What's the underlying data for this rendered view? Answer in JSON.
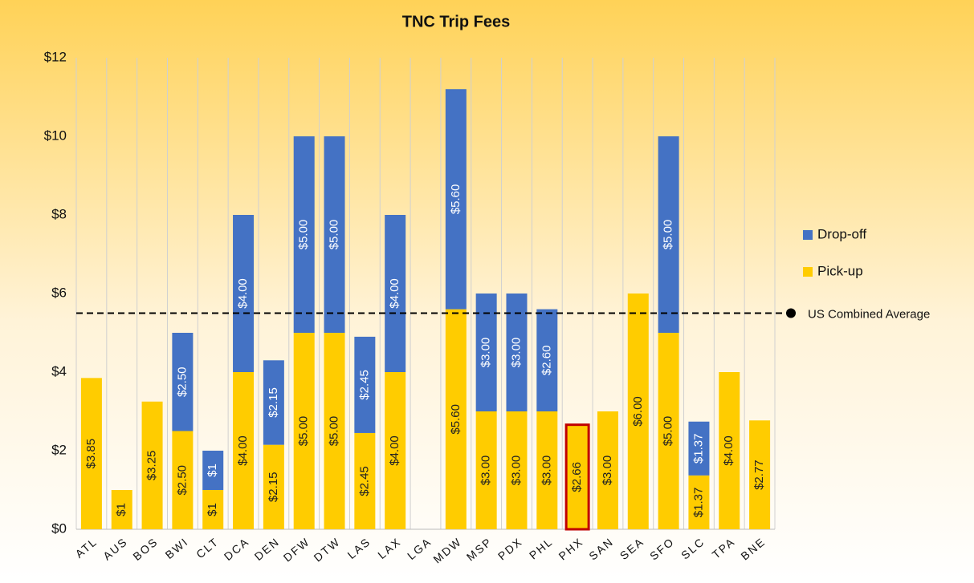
{
  "chart_data": {
    "type": "stacked_bar",
    "title": "TNC Trip Fees",
    "categories": [
      "ATL",
      "AUS",
      "BOS",
      "BWI",
      "CLT",
      "DCA",
      "DEN",
      "DFW",
      "DTW",
      "LAS",
      "LAX",
      "LGA",
      "MDW",
      "MSP",
      "PDX",
      "PHL",
      "PHX",
      "SAN",
      "SEA",
      "SFO",
      "SLC",
      "TPA",
      "BNE"
    ],
    "series": [
      {
        "name": "Pick-up",
        "color": "#ffcc00",
        "label_color": "#222222",
        "values": [
          3.85,
          1,
          3.25,
          2.5,
          1,
          4,
          2.15,
          5,
          5,
          2.45,
          4,
          null,
          5.6,
          3,
          3,
          3,
          2.66,
          3,
          6,
          5,
          1.37,
          4,
          2.77
        ],
        "value_labels": [
          "$3.85",
          "$1",
          "$3.25",
          "$2.50",
          "$1",
          "$4.00",
          "$2.15",
          "$5.00",
          "$5.00",
          "$2.45",
          "$4.00",
          null,
          "$5.60",
          "$3.00",
          "$3.00",
          "$3.00",
          "$2.66",
          "$3.00",
          "$6.00",
          "$5.00",
          "$1.37",
          "$4.00",
          "$2.77"
        ]
      },
      {
        "name": "Drop-off",
        "color": "#4472c4",
        "label_color": "#ffffff",
        "values": [
          null,
          null,
          null,
          2.5,
          1,
          4,
          2.15,
          5,
          5,
          2.45,
          4,
          null,
          5.6,
          3,
          3,
          2.6,
          null,
          null,
          null,
          5,
          1.37,
          null,
          null
        ],
        "value_labels": [
          null,
          null,
          null,
          "$2.50",
          "$1",
          "$4.00",
          "$2.15",
          "$5.00",
          "$5.00",
          "$2.45",
          "$4.00",
          null,
          "$5.60",
          "$3.00",
          "$3.00",
          "$2.60",
          null,
          null,
          null,
          "$5.00",
          "$1.37",
          null,
          null
        ]
      }
    ],
    "ylim": [
      0,
      12
    ],
    "yticks": [
      {
        "value": 0,
        "label": "$0"
      },
      {
        "value": 2,
        "label": "$2"
      },
      {
        "value": 4,
        "label": "$4"
      },
      {
        "value": 6,
        "label": "$6"
      },
      {
        "value": 8,
        "label": "$8"
      },
      {
        "value": 10,
        "label": "$10"
      },
      {
        "value": 12,
        "label": "$12"
      }
    ],
    "reference_line": {
      "value": 5.5,
      "label": "US Combined Average"
    },
    "highlight": {
      "category_index": 16,
      "color": "#c00000"
    },
    "legend": "right"
  }
}
